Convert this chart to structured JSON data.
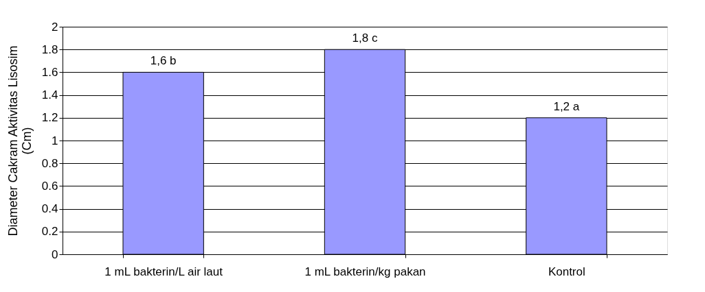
{
  "chart_data": {
    "type": "bar",
    "ylabel": "Diameter Cakram Aktivitas Lisosim\n(Cm)",
    "categories": [
      "1 mL bakterin/L air laut",
      "1 mL bakterin/kg pakan",
      "Kontrol"
    ],
    "values": [
      1.6,
      1.8,
      1.2
    ],
    "color": "#9999ff",
    "value_labels": [
      "1,6 b",
      "1,8 c",
      "1,2 a"
    ],
    "ylim": [
      0,
      2
    ],
    "yticks": [
      0,
      0.2,
      0.4,
      0.6,
      0.8,
      1,
      1.2,
      1.4,
      1.6,
      1.8,
      2
    ],
    "grid": "y"
  }
}
